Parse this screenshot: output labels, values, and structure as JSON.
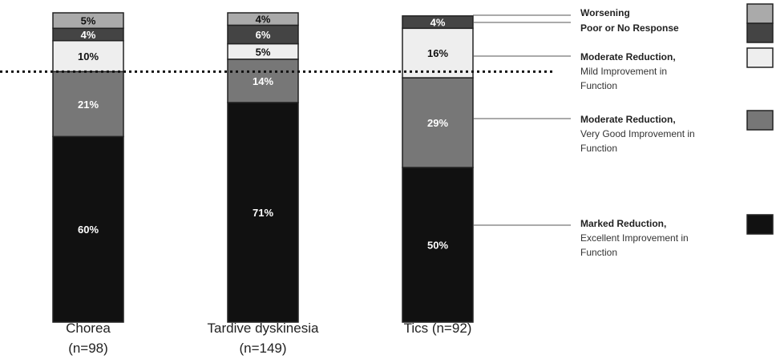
{
  "chart_data": {
    "type": "bar",
    "stacked": true,
    "categories": [
      {
        "line1": "Chorea",
        "line2": "(n=98)"
      },
      {
        "line1": "Tardive dyskinesia",
        "line2": "(n=149)"
      },
      {
        "line1": "Tics (n=92)",
        "line2": ""
      }
    ],
    "series": [
      {
        "key": "marked",
        "title": "Marked Reduction,",
        "desc": [
          "Excellent Improvement in",
          "Function"
        ],
        "color": "#111111",
        "text_color": "#ffffff",
        "values": [
          60,
          71,
          50
        ],
        "labels": [
          "60%",
          "71%",
          "50%"
        ]
      },
      {
        "key": "moderate_vg",
        "title": "Moderate Reduction,",
        "desc": [
          "Very Good Improvement in",
          "Function"
        ],
        "color": "#777777",
        "text_color": "#ffffff",
        "values": [
          21,
          14,
          29
        ],
        "labels": [
          "21%",
          "14%",
          "29%"
        ]
      },
      {
        "key": "moderate_mild",
        "title": "Moderate Reduction,",
        "desc": [
          "Mild Improvement in",
          "Function"
        ],
        "color": "#eeeeee",
        "text_color": "#111111",
        "values": [
          10,
          5,
          16
        ],
        "labels": [
          "10%",
          "5%",
          "16%"
        ]
      },
      {
        "key": "poor",
        "title": "Poor or No Response",
        "desc": [],
        "color": "#444444",
        "text_color": "#ffffff",
        "values": [
          4,
          6,
          4
        ],
        "labels": [
          "4%",
          "6%",
          "4%"
        ]
      },
      {
        "key": "worsening",
        "title": "Worsening",
        "desc": [],
        "color": "#aaaaaa",
        "text_color": "#111111",
        "values": [
          5,
          4,
          0
        ],
        "labels": [
          "5%",
          "4%",
          ""
        ]
      }
    ],
    "ylim": [
      0,
      100
    ],
    "reference_line": {
      "value": 81,
      "style": "dotted"
    },
    "legend_position": "right"
  }
}
